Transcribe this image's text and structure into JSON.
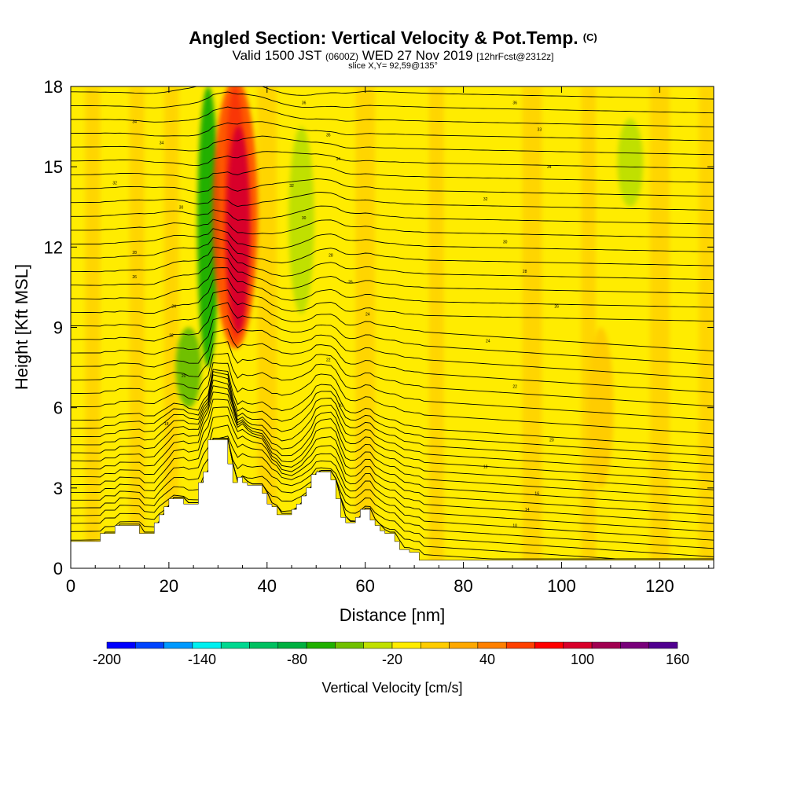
{
  "header": {
    "title": "Angled Section: Vertical Velocity & Pot.Temp.",
    "title_units": "(C)",
    "valid_prefix": "Valid 1500 JST",
    "valid_zulu": "(0600Z)",
    "valid_date": "WED 27 Nov 2019",
    "forecast": "[12hrFcst@2312z]",
    "slice": "slice X,Y= 92,59@135°"
  },
  "chart_data": {
    "type": "heatmap",
    "xlabel": "Distance [nm]",
    "ylabel": "Height [Kft MSL]",
    "xlim": [
      0,
      131
    ],
    "ylim": [
      0,
      18
    ],
    "x_ticks": [
      "0",
      "20",
      "40",
      "60",
      "80",
      "100",
      "120"
    ],
    "y_ticks": [
      "0",
      "3",
      "6",
      "9",
      "12",
      "15",
      "18"
    ],
    "x_tick_values": [
      0,
      20,
      40,
      60,
      80,
      100,
      120
    ],
    "y_tick_values": [
      0,
      3,
      6,
      9,
      12,
      15,
      18
    ],
    "background_level_cm_s": [
      -10,
      10
    ],
    "features": [
      {
        "kind": "downdraft",
        "x": 28,
        "z_range": [
          7.5,
          18
        ],
        "w_cm_s": -70
      },
      {
        "kind": "downdraft",
        "x": 24,
        "z_range": [
          6,
          9
        ],
        "w_cm_s": -40
      },
      {
        "kind": "updraft",
        "x": 33.5,
        "z_range": [
          8.5,
          18
        ],
        "w_cm_s": 95
      },
      {
        "kind": "downdraft",
        "x": 47,
        "z_range": [
          9.5,
          16.5
        ],
        "w_cm_s": -30
      },
      {
        "kind": "downdraft",
        "x": 114,
        "z_range": [
          13.5,
          16.8
        ],
        "w_cm_s": -30
      },
      {
        "kind": "updraft",
        "x": 108,
        "z_range": [
          3,
          9
        ],
        "w_cm_s": 15
      }
    ],
    "terrain_kft": [
      [
        0,
        1.0
      ],
      [
        5,
        1.0
      ],
      [
        6,
        1.3
      ],
      [
        8,
        1.3
      ],
      [
        9,
        1.6
      ],
      [
        13,
        1.6
      ],
      [
        14,
        1.3
      ],
      [
        16,
        1.3
      ],
      [
        17,
        1.7
      ],
      [
        18,
        2.0
      ],
      [
        19,
        2.3
      ],
      [
        20,
        2.6
      ],
      [
        22,
        2.6
      ],
      [
        23,
        2.4
      ],
      [
        26,
        3.2
      ],
      [
        27,
        3.6
      ],
      [
        28,
        4.8
      ],
      [
        31,
        4.8
      ],
      [
        32,
        3.9
      ],
      [
        33,
        3.2
      ],
      [
        34,
        3.4
      ],
      [
        35,
        3.2
      ],
      [
        36,
        3.1
      ],
      [
        37,
        3.1
      ],
      [
        39,
        2.8
      ],
      [
        40,
        2.4
      ],
      [
        41,
        2.3
      ],
      [
        42,
        2.0
      ],
      [
        44,
        2.0
      ],
      [
        45,
        2.2
      ],
      [
        46,
        2.4
      ],
      [
        47,
        2.7
      ],
      [
        48,
        3.0
      ],
      [
        49,
        3.5
      ],
      [
        50,
        3.6
      ],
      [
        52,
        3.6
      ],
      [
        53,
        3.3
      ],
      [
        54,
        2.6
      ],
      [
        55,
        1.9
      ],
      [
        56,
        1.7
      ],
      [
        57,
        1.7
      ],
      [
        58,
        1.9
      ],
      [
        59,
        2.2
      ],
      [
        60,
        2.2
      ],
      [
        61,
        1.8
      ],
      [
        62,
        1.6
      ],
      [
        63,
        1.4
      ],
      [
        64,
        1.3
      ],
      [
        66,
        1.0
      ],
      [
        67,
        0.7
      ],
      [
        69,
        0.6
      ],
      [
        71,
        0.3
      ],
      [
        131,
        0.3
      ]
    ],
    "isentrope_labels": [
      {
        "text": "36",
        "x": 47.5,
        "y": 17.4
      },
      {
        "text": "36",
        "x": 90.5,
        "y": 17.4
      },
      {
        "text": "34",
        "x": 13,
        "y": 16.7
      },
      {
        "text": "35",
        "x": 52.5,
        "y": 16.2
      },
      {
        "text": "33",
        "x": 95.5,
        "y": 16.4
      },
      {
        "text": "34",
        "x": 18.5,
        "y": 15.9
      },
      {
        "text": "34",
        "x": 54.5,
        "y": 15.3
      },
      {
        "text": "34",
        "x": 97.5,
        "y": 15.0
      },
      {
        "text": "32",
        "x": 9,
        "y": 14.4
      },
      {
        "text": "32",
        "x": 45,
        "y": 14.3
      },
      {
        "text": "32",
        "x": 84.5,
        "y": 13.8
      },
      {
        "text": "30",
        "x": 22.5,
        "y": 13.5
      },
      {
        "text": "30",
        "x": 47.5,
        "y": 13.1
      },
      {
        "text": "30",
        "x": 88.5,
        "y": 12.2
      },
      {
        "text": "28",
        "x": 13,
        "y": 11.8
      },
      {
        "text": "28",
        "x": 53,
        "y": 11.7
      },
      {
        "text": "28",
        "x": 92.5,
        "y": 11.1
      },
      {
        "text": "26",
        "x": 13,
        "y": 10.9
      },
      {
        "text": "26",
        "x": 57,
        "y": 10.7
      },
      {
        "text": "26",
        "x": 99,
        "y": 9.8
      },
      {
        "text": "24",
        "x": 21,
        "y": 9.8
      },
      {
        "text": "24",
        "x": 60.5,
        "y": 9.5
      },
      {
        "text": "24",
        "x": 85,
        "y": 8.5
      },
      {
        "text": "22",
        "x": 20.5,
        "y": 8.7
      },
      {
        "text": "22",
        "x": 52.5,
        "y": 7.8
      },
      {
        "text": "22",
        "x": 90.5,
        "y": 6.8
      },
      {
        "text": "20",
        "x": 23,
        "y": 7.2
      },
      {
        "text": "20",
        "x": 55,
        "y": 6.1
      },
      {
        "text": "20",
        "x": 98,
        "y": 4.8
      },
      {
        "text": "18",
        "x": 19.5,
        "y": 5.4
      },
      {
        "text": "18",
        "x": 84.5,
        "y": 3.8
      },
      {
        "text": "16",
        "x": 50.5,
        "y": 3.6
      },
      {
        "text": "16",
        "x": 95,
        "y": 2.8
      },
      {
        "text": "14",
        "x": 93,
        "y": 2.2
      },
      {
        "text": "10",
        "x": 90.5,
        "y": 1.6
      }
    ]
  },
  "colorbar": {
    "title": "Vertical Velocity [cm/s]",
    "labels": [
      "-200",
      "-140",
      "-80",
      "-20",
      "40",
      "100",
      "160"
    ],
    "label_values": [
      -200,
      -140,
      -80,
      -20,
      40,
      100,
      160
    ],
    "range": [
      -200,
      160
    ],
    "colors": [
      "#0000ff",
      "#0044ff",
      "#0099ff",
      "#00f0f0",
      "#00d890",
      "#00c060",
      "#00b040",
      "#20b000",
      "#70c000",
      "#c0e000",
      "#ffec00",
      "#ffcc00",
      "#ffa800",
      "#ff8000",
      "#ff4000",
      "#ff0000",
      "#d8002a",
      "#a00050",
      "#78007a",
      "#500090"
    ]
  }
}
